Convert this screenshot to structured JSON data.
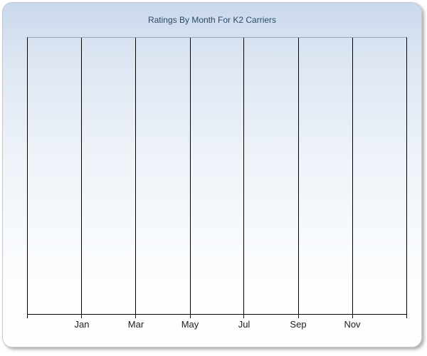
{
  "window": {
    "background": "#ffffff"
  },
  "card": {
    "border_color": "#c9c9c9",
    "gradient_top": "#c9d8ec",
    "gradient_upper_mid": "#dce5f2",
    "gradient_mid": "#eef3f9",
    "gradient_lower": "#fafcfe",
    "gradient_bottom": "#feffff"
  },
  "chart_data": {
    "type": "line",
    "title": "Ratings By Month For K2 Carriers",
    "title_color": "#2b4a68",
    "categories": [
      "Jan",
      "Mar",
      "May",
      "Jul",
      "Sep",
      "Nov"
    ],
    "series": [],
    "x_interval_count": 7,
    "xlabel": "",
    "ylabel": "",
    "y_tick_labels_visible": false,
    "grid": "vertical-only",
    "legend": "none",
    "gridline_color": "#000000",
    "axis_color": "#000000",
    "plot_top_border_color": "#9fa6ae",
    "tick_label_color": "#1c1c1c"
  }
}
